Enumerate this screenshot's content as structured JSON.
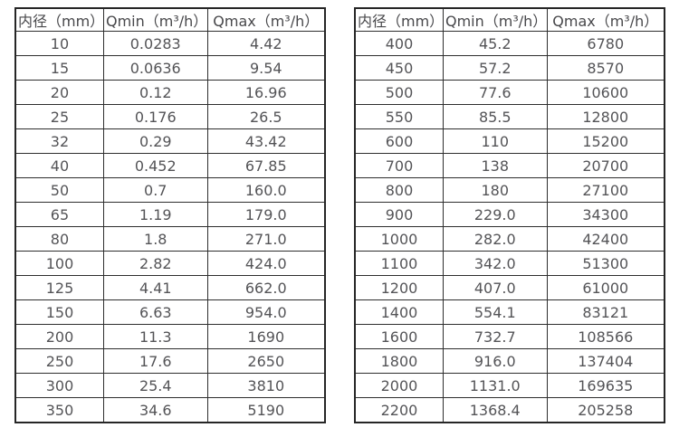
{
  "page": {
    "background": "#ffffff",
    "text_color": "#545457",
    "border_color": "#2e2e2e"
  },
  "tables": [
    {
      "name": "flow-table-small-diameters",
      "columns": [
        "内径（mm）",
        "Qmin（m³/h）",
        "Qmax（m³/h）"
      ],
      "rows": [
        [
          "10",
          "0.0283",
          "4.42"
        ],
        [
          "15",
          "0.0636",
          "9.54"
        ],
        [
          "20",
          "0.12",
          "16.96"
        ],
        [
          "25",
          "0.176",
          "26.5"
        ],
        [
          "32",
          "0.29",
          "43.42"
        ],
        [
          "40",
          "0.452",
          "67.85"
        ],
        [
          "50",
          "0.7",
          "160.0"
        ],
        [
          "65",
          "1.19",
          "179.0"
        ],
        [
          "80",
          "1.8",
          "271.0"
        ],
        [
          "100",
          "2.82",
          "424.0"
        ],
        [
          "125",
          "4.41",
          "662.0"
        ],
        [
          "150",
          "6.63",
          "954.0"
        ],
        [
          "200",
          "11.3",
          "1690"
        ],
        [
          "250",
          "17.6",
          "2650"
        ],
        [
          "300",
          "25.4",
          "3810"
        ],
        [
          "350",
          "34.6",
          "5190"
        ]
      ]
    },
    {
      "name": "flow-table-large-diameters",
      "columns": [
        "内径（mm）",
        "Qmin（m³/h）",
        "Qmax（m³/h）"
      ],
      "rows": [
        [
          "400",
          "45.2",
          "6780"
        ],
        [
          "450",
          "57.2",
          "8570"
        ],
        [
          "500",
          "77.6",
          "10600"
        ],
        [
          "550",
          "85.5",
          "12800"
        ],
        [
          "600",
          "110",
          "15200"
        ],
        [
          "700",
          "138",
          "20700"
        ],
        [
          "800",
          "180",
          "27100"
        ],
        [
          "900",
          "229.0",
          "34300"
        ],
        [
          "1000",
          "282.0",
          "42400"
        ],
        [
          "1100",
          "342.0",
          "51300"
        ],
        [
          "1200",
          "407.0",
          "61000"
        ],
        [
          "1400",
          "554.1",
          "83121"
        ],
        [
          "1600",
          "732.7",
          "108566"
        ],
        [
          "1800",
          "916.0",
          "137404"
        ],
        [
          "2000",
          "1131.0",
          "169635"
        ],
        [
          "2200",
          "1368.4",
          "205258"
        ]
      ]
    }
  ]
}
